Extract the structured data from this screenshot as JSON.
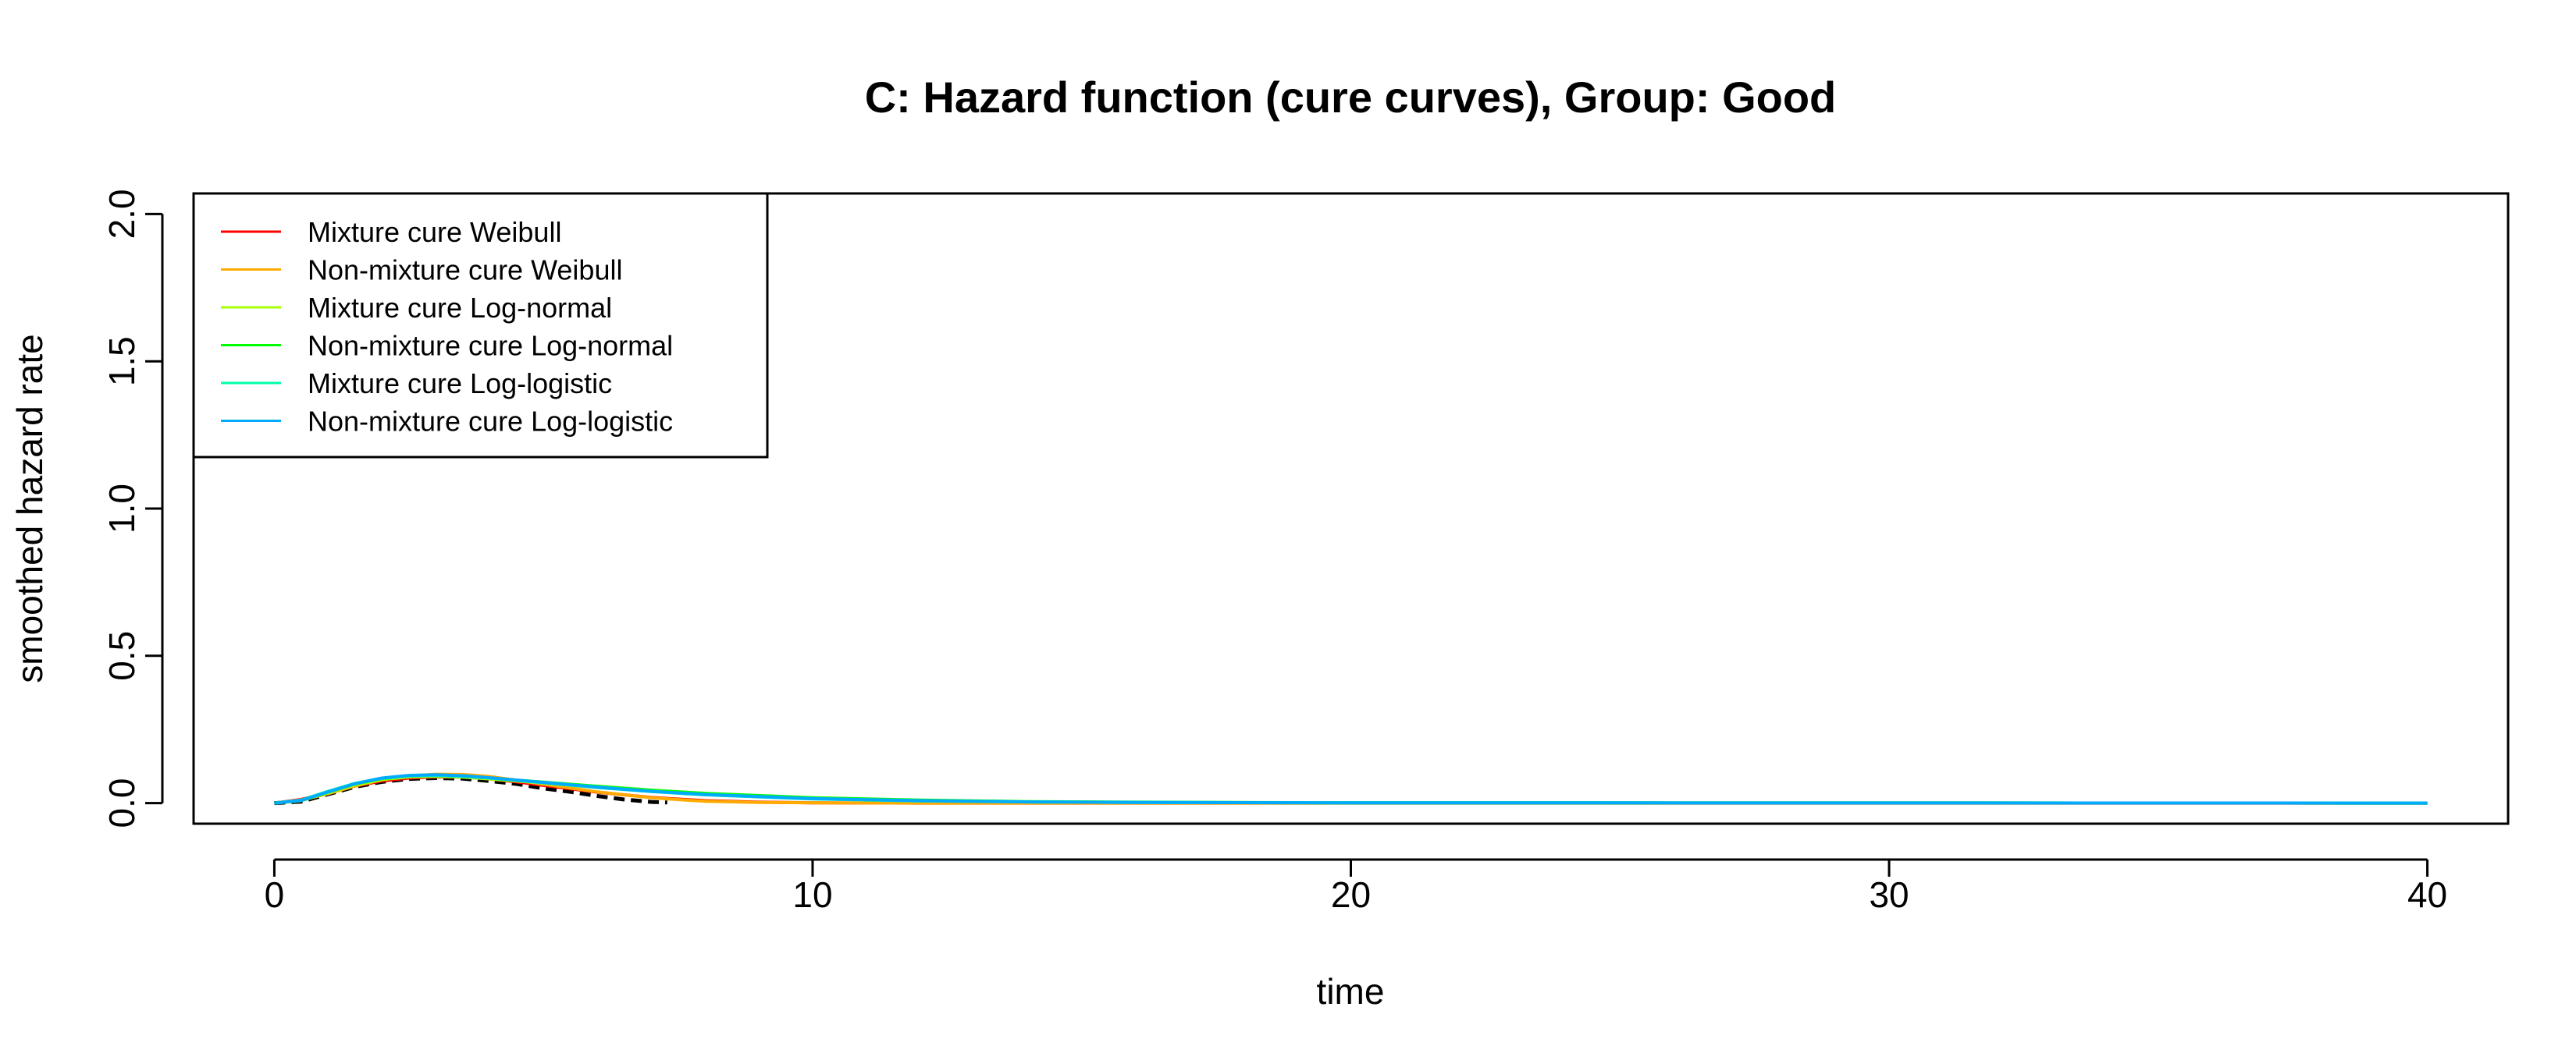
{
  "chart_data": {
    "type": "line",
    "title": "C: Hazard function (cure curves), Group: Good",
    "xlabel": "time",
    "ylabel": "smoothed hazard rate",
    "xlim": [
      -1.5,
      41.5
    ],
    "ylim": [
      -0.07,
      2.07
    ],
    "xticks": [
      0,
      10,
      20,
      30,
      40
    ],
    "yticks": [
      0.0,
      0.5,
      1.0,
      1.5,
      2.0
    ],
    "xtick_labels": [
      "0",
      "10",
      "20",
      "30",
      "40"
    ],
    "ytick_labels": [
      "0.0",
      "0.5",
      "1.0",
      "1.5",
      "2.0"
    ],
    "legend_position": "top-left",
    "grid": false,
    "observed": {
      "color": "#000000",
      "x": [
        0,
        0.5,
        1,
        1.5,
        2,
        2.5,
        3,
        3.5,
        4,
        4.5,
        5,
        5.5,
        6,
        6.5,
        7,
        7.3
      ],
      "y": [
        0.0,
        0.005,
        0.03,
        0.055,
        0.072,
        0.082,
        0.085,
        0.083,
        0.075,
        0.065,
        0.05,
        0.038,
        0.024,
        0.012,
        0.004,
        0.002
      ]
    },
    "series": [
      {
        "name": "Mixture cure Weibull",
        "color": "#FF0000",
        "x": [
          0,
          0.5,
          1,
          1.5,
          2,
          2.5,
          3,
          3.5,
          4,
          4.5,
          5,
          6,
          7,
          8,
          9,
          10,
          12,
          40
        ],
        "y": [
          0.0,
          0.012,
          0.035,
          0.058,
          0.075,
          0.085,
          0.089,
          0.088,
          0.082,
          0.072,
          0.06,
          0.037,
          0.019,
          0.008,
          0.003,
          0.001,
          0.0,
          0.0
        ]
      },
      {
        "name": "Non-mixture cure Weibull",
        "color": "#FFAA00",
        "x": [
          0,
          0.5,
          1,
          1.5,
          2,
          2.5,
          3,
          3.5,
          4,
          4.5,
          5,
          6,
          7,
          8,
          9,
          10,
          12,
          40
        ],
        "y": [
          0.0,
          0.01,
          0.032,
          0.058,
          0.079,
          0.092,
          0.098,
          0.097,
          0.09,
          0.078,
          0.064,
          0.038,
          0.018,
          0.006,
          0.002,
          0.001,
          0.0,
          0.0
        ]
      },
      {
        "name": "Mixture cure Log-normal",
        "color": "#AAFF00",
        "x": [
          0,
          0.5,
          1,
          1.5,
          2,
          2.5,
          3,
          3.5,
          4,
          5,
          6,
          7,
          8,
          10,
          12,
          14,
          16,
          20,
          40
        ],
        "y": [
          0.0,
          0.008,
          0.035,
          0.062,
          0.08,
          0.089,
          0.091,
          0.088,
          0.082,
          0.068,
          0.053,
          0.04,
          0.029,
          0.015,
          0.008,
          0.004,
          0.002,
          0.001,
          0.0
        ]
      },
      {
        "name": "Non-mixture cure Log-normal",
        "color": "#00FF00",
        "x": [
          0,
          0.5,
          1,
          1.5,
          2,
          2.5,
          3,
          3.5,
          4,
          5,
          6,
          7,
          8,
          10,
          12,
          14,
          16,
          20,
          40
        ],
        "y": [
          0.0,
          0.009,
          0.037,
          0.065,
          0.083,
          0.092,
          0.094,
          0.091,
          0.085,
          0.071,
          0.057,
          0.044,
          0.033,
          0.018,
          0.01,
          0.005,
          0.003,
          0.001,
          0.0
        ]
      },
      {
        "name": "Mixture cure Log-logistic",
        "color": "#00FFAA",
        "x": [
          0,
          0.5,
          1,
          1.5,
          2,
          2.5,
          3,
          3.5,
          4,
          5,
          6,
          7,
          8,
          10,
          12,
          14,
          16,
          20,
          40
        ],
        "y": [
          0.0,
          0.01,
          0.04,
          0.067,
          0.084,
          0.092,
          0.094,
          0.091,
          0.085,
          0.069,
          0.053,
          0.039,
          0.028,
          0.014,
          0.007,
          0.004,
          0.002,
          0.001,
          0.0
        ]
      },
      {
        "name": "Non-mixture cure Log-logistic",
        "color": "#00AAFF",
        "x": [
          0,
          0.5,
          1,
          1.5,
          2,
          2.5,
          3,
          3.5,
          4,
          5,
          6,
          7,
          8,
          10,
          12,
          14,
          16,
          20,
          40
        ],
        "y": [
          0.0,
          0.009,
          0.038,
          0.066,
          0.085,
          0.094,
          0.096,
          0.093,
          0.086,
          0.07,
          0.054,
          0.04,
          0.029,
          0.015,
          0.008,
          0.004,
          0.002,
          0.001,
          0.0
        ]
      }
    ]
  }
}
